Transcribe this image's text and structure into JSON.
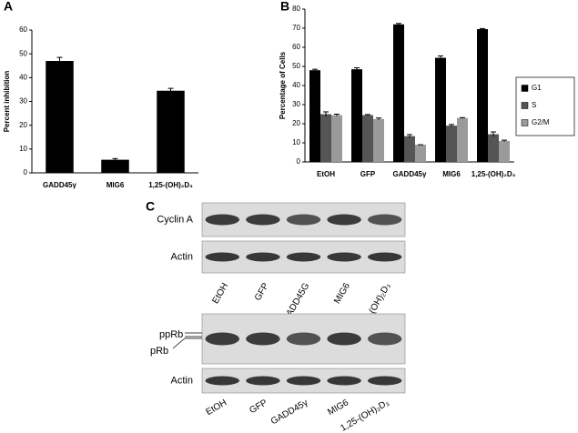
{
  "chart_data": [
    {
      "type": "bar",
      "label": "A",
      "ylabel": "Percent inhibition",
      "categories": [
        "GADD45γ",
        "MIG6",
        "1,25-(OH)₂D₃"
      ],
      "values": [
        47,
        5.5,
        34.5
      ],
      "errors": [
        1.5,
        0.5,
        1
      ],
      "color": "#000000",
      "ylim": [
        0,
        60
      ],
      "yticks": [
        0,
        10,
        20,
        30,
        40,
        50,
        60
      ]
    },
    {
      "type": "grouped-bar",
      "label": "B",
      "ylabel": "Percentage of Cells",
      "categories": [
        "EtOH",
        "GFP",
        "GADD45γ",
        "MIG6",
        "1,25-(OH)₂D₃"
      ],
      "series": [
        {
          "name": "G1",
          "color": "#000000",
          "values": [
            48,
            48.5,
            72,
            54.5,
            69.5
          ],
          "errors": [
            0.5,
            0.8,
            0.5,
            1,
            0.3
          ]
        },
        {
          "name": "S",
          "color": "#555555",
          "values": [
            25,
            24.5,
            13.5,
            19,
            14.5
          ],
          "errors": [
            1.2,
            0.3,
            0.8,
            0.6,
            1.2
          ]
        },
        {
          "name": "G2/M",
          "color": "#9a9a9a",
          "values": [
            24.5,
            22.5,
            9,
            23,
            11
          ],
          "errors": [
            0.5,
            0.5,
            0,
            0.2,
            0.4
          ]
        }
      ],
      "ylim": [
        0,
        80
      ],
      "yticks": [
        0,
        10,
        20,
        30,
        40,
        50,
        60,
        70,
        80
      ],
      "legend": "right"
    }
  ],
  "panel_c": {
    "label": "C",
    "blots": [
      {
        "band_labels": [
          "Cyclin A"
        ],
        "loading_label": "Actin",
        "lanes": [
          "EtOH",
          "GFP",
          "GADD45G",
          "MIG6",
          "1,25-(OH)₂D₃"
        ]
      },
      {
        "band_labels": [
          "ppRb",
          "pRb"
        ],
        "loading_label": "Actin",
        "lanes": [
          "EtOH",
          "GFP",
          "GADD45γ",
          "MIG6",
          "1,25-(OH)₂D₃"
        ]
      }
    ]
  }
}
